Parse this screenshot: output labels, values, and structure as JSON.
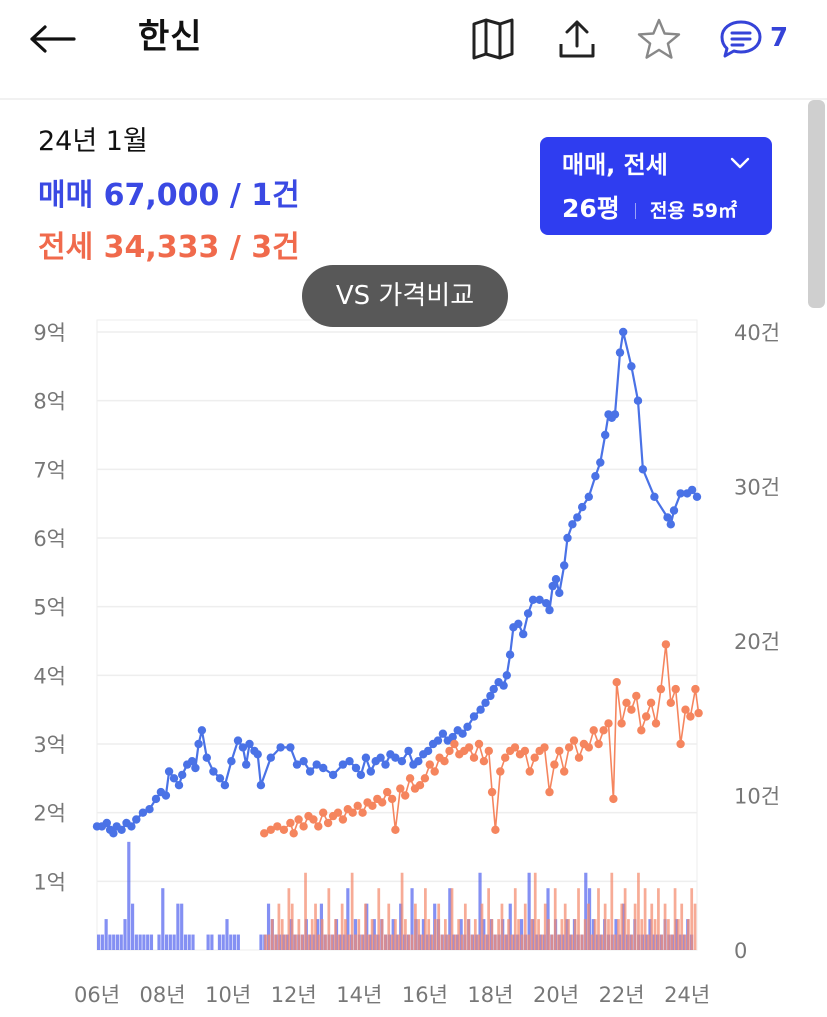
{
  "header": {
    "title": "한신",
    "comment_count": "7",
    "icons": [
      "back-arrow-icon",
      "map-icon",
      "share-icon",
      "star-icon",
      "comment-icon"
    ]
  },
  "summary": {
    "date": "24년 1월",
    "sale": "매매 67,000 / 1건",
    "jeonse": "전세 34,333 / 3건"
  },
  "type_selector": {
    "type": "매매, 전세",
    "size": "26평",
    "area": "전용 59㎡"
  },
  "compare_button": {
    "label": "VS 가격비교"
  },
  "colors": {
    "sale": "#4a72e6",
    "jeonse": "#f5855e",
    "accent": "#2f3df0",
    "sale_text": "#3a49e3",
    "jeonse_text": "#f06a4c"
  },
  "chart_data": {
    "type": "line",
    "x_ticks": [
      "06년",
      "08년",
      "10년",
      "12년",
      "14년",
      "16년",
      "18년",
      "20년",
      "22년",
      "24년"
    ],
    "xlim": [
      2006,
      2024.3
    ],
    "y_ticks": [
      "1억",
      "2억",
      "3억",
      "4억",
      "5억",
      "6억",
      "7억",
      "8억",
      "9억"
    ],
    "ylim": [
      0,
      9
    ],
    "y2_ticks": [
      "0",
      "10건",
      "20건",
      "30건",
      "40건"
    ],
    "y2lim": [
      0,
      40
    ],
    "grid": true,
    "series": [
      {
        "key": "sale",
        "points": [
          [
            2006.0,
            1.8
          ],
          [
            2006.15,
            1.8
          ],
          [
            2006.3,
            1.85
          ],
          [
            2006.4,
            1.75
          ],
          [
            2006.5,
            1.7
          ],
          [
            2006.6,
            1.8
          ],
          [
            2006.75,
            1.75
          ],
          [
            2006.9,
            1.85
          ],
          [
            2007.05,
            1.8
          ],
          [
            2007.2,
            1.9
          ],
          [
            2007.4,
            2.0
          ],
          [
            2007.6,
            2.05
          ],
          [
            2007.8,
            2.2
          ],
          [
            2007.95,
            2.3
          ],
          [
            2008.1,
            2.25
          ],
          [
            2008.2,
            2.6
          ],
          [
            2008.35,
            2.5
          ],
          [
            2008.5,
            2.4
          ],
          [
            2008.6,
            2.55
          ],
          [
            2008.75,
            2.7
          ],
          [
            2008.9,
            2.75
          ],
          [
            2009.0,
            2.65
          ],
          [
            2009.1,
            3.0
          ],
          [
            2009.2,
            3.2
          ],
          [
            2009.35,
            2.8
          ],
          [
            2009.55,
            2.6
          ],
          [
            2009.75,
            2.5
          ],
          [
            2009.9,
            2.4
          ],
          [
            2010.1,
            2.75
          ],
          [
            2010.3,
            3.05
          ],
          [
            2010.45,
            2.95
          ],
          [
            2010.55,
            2.7
          ],
          [
            2010.65,
            3.0
          ],
          [
            2010.8,
            2.9
          ],
          [
            2010.9,
            2.85
          ],
          [
            2011.0,
            2.4
          ],
          [
            2011.3,
            2.8
          ],
          [
            2011.6,
            2.95
          ],
          [
            2011.9,
            2.95
          ],
          [
            2012.1,
            2.7
          ],
          [
            2012.3,
            2.75
          ],
          [
            2012.5,
            2.6
          ],
          [
            2012.7,
            2.7
          ],
          [
            2012.9,
            2.65
          ],
          [
            2013.2,
            2.55
          ],
          [
            2013.5,
            2.7
          ],
          [
            2013.7,
            2.75
          ],
          [
            2013.9,
            2.65
          ],
          [
            2014.05,
            2.55
          ],
          [
            2014.2,
            2.8
          ],
          [
            2014.35,
            2.6
          ],
          [
            2014.5,
            2.75
          ],
          [
            2014.65,
            2.8
          ],
          [
            2014.8,
            2.7
          ],
          [
            2014.95,
            2.85
          ],
          [
            2015.1,
            2.8
          ],
          [
            2015.3,
            2.75
          ],
          [
            2015.5,
            2.9
          ],
          [
            2015.65,
            2.7
          ],
          [
            2015.8,
            2.75
          ],
          [
            2015.95,
            2.85
          ],
          [
            2016.1,
            2.9
          ],
          [
            2016.25,
            3.0
          ],
          [
            2016.4,
            3.05
          ],
          [
            2016.55,
            3.15
          ],
          [
            2016.7,
            3.05
          ],
          [
            2016.85,
            3.1
          ],
          [
            2017.0,
            3.2
          ],
          [
            2017.15,
            3.15
          ],
          [
            2017.3,
            3.25
          ],
          [
            2017.5,
            3.4
          ],
          [
            2017.7,
            3.5
          ],
          [
            2017.85,
            3.6
          ],
          [
            2018.0,
            3.7
          ],
          [
            2018.1,
            3.8
          ],
          [
            2018.25,
            3.9
          ],
          [
            2018.4,
            3.85
          ],
          [
            2018.5,
            4.0
          ],
          [
            2018.6,
            4.3
          ],
          [
            2018.7,
            4.7
          ],
          [
            2018.85,
            4.75
          ],
          [
            2019.0,
            4.6
          ],
          [
            2019.15,
            4.9
          ],
          [
            2019.3,
            5.1
          ],
          [
            2019.5,
            5.1
          ],
          [
            2019.7,
            5.05
          ],
          [
            2019.8,
            4.95
          ],
          [
            2019.9,
            5.3
          ],
          [
            2020.0,
            5.4
          ],
          [
            2020.1,
            5.2
          ],
          [
            2020.25,
            5.6
          ],
          [
            2020.35,
            6.0
          ],
          [
            2020.5,
            6.2
          ],
          [
            2020.65,
            6.3
          ],
          [
            2020.8,
            6.45
          ],
          [
            2021.0,
            6.6
          ],
          [
            2021.2,
            6.9
          ],
          [
            2021.35,
            7.1
          ],
          [
            2021.5,
            7.5
          ],
          [
            2021.6,
            7.8
          ],
          [
            2021.7,
            7.75
          ],
          [
            2021.8,
            7.8
          ],
          [
            2021.95,
            8.7
          ],
          [
            2022.05,
            9.0
          ],
          [
            2022.3,
            8.5
          ],
          [
            2022.5,
            8.0
          ],
          [
            2022.65,
            7.0
          ],
          [
            2023.0,
            6.6
          ],
          [
            2023.4,
            6.3
          ],
          [
            2023.5,
            6.2
          ],
          [
            2023.6,
            6.4
          ],
          [
            2023.8,
            6.65
          ],
          [
            2024.0,
            6.65
          ],
          [
            2024.15,
            6.7
          ],
          [
            2024.3,
            6.6
          ]
        ]
      },
      {
        "key": "jeonse",
        "points": [
          [
            2011.1,
            1.7
          ],
          [
            2011.3,
            1.75
          ],
          [
            2011.5,
            1.8
          ],
          [
            2011.7,
            1.75
          ],
          [
            2011.9,
            1.85
          ],
          [
            2012.0,
            1.7
          ],
          [
            2012.15,
            1.9
          ],
          [
            2012.3,
            1.8
          ],
          [
            2012.45,
            1.95
          ],
          [
            2012.6,
            1.9
          ],
          [
            2012.75,
            1.8
          ],
          [
            2012.9,
            2.0
          ],
          [
            2013.05,
            1.85
          ],
          [
            2013.2,
            1.95
          ],
          [
            2013.35,
            2.0
          ],
          [
            2013.5,
            1.9
          ],
          [
            2013.65,
            2.05
          ],
          [
            2013.8,
            2.0
          ],
          [
            2013.95,
            2.1
          ],
          [
            2014.1,
            2.0
          ],
          [
            2014.25,
            2.15
          ],
          [
            2014.4,
            2.1
          ],
          [
            2014.55,
            2.2
          ],
          [
            2014.7,
            2.15
          ],
          [
            2014.85,
            2.3
          ],
          [
            2015.0,
            2.2
          ],
          [
            2015.1,
            1.75
          ],
          [
            2015.25,
            2.35
          ],
          [
            2015.4,
            2.25
          ],
          [
            2015.55,
            2.5
          ],
          [
            2015.7,
            2.35
          ],
          [
            2015.85,
            2.4
          ],
          [
            2016.0,
            2.5
          ],
          [
            2016.15,
            2.7
          ],
          [
            2016.3,
            2.6
          ],
          [
            2016.45,
            2.8
          ],
          [
            2016.6,
            2.75
          ],
          [
            2016.75,
            2.9
          ],
          [
            2016.9,
            3.0
          ],
          [
            2017.05,
            2.85
          ],
          [
            2017.2,
            2.9
          ],
          [
            2017.35,
            2.95
          ],
          [
            2017.5,
            2.8
          ],
          [
            2017.65,
            3.0
          ],
          [
            2017.8,
            2.75
          ],
          [
            2017.95,
            2.9
          ],
          [
            2018.05,
            2.3
          ],
          [
            2018.15,
            1.75
          ],
          [
            2018.3,
            2.6
          ],
          [
            2018.45,
            2.8
          ],
          [
            2018.6,
            2.9
          ],
          [
            2018.75,
            2.95
          ],
          [
            2018.9,
            2.85
          ],
          [
            2019.05,
            2.9
          ],
          [
            2019.2,
            2.6
          ],
          [
            2019.35,
            2.8
          ],
          [
            2019.5,
            2.9
          ],
          [
            2019.65,
            2.95
          ],
          [
            2019.8,
            2.3
          ],
          [
            2019.95,
            2.7
          ],
          [
            2020.1,
            2.9
          ],
          [
            2020.25,
            2.6
          ],
          [
            2020.4,
            2.95
          ],
          [
            2020.55,
            3.05
          ],
          [
            2020.7,
            2.8
          ],
          [
            2020.85,
            3.0
          ],
          [
            2021.0,
            2.95
          ],
          [
            2021.15,
            3.2
          ],
          [
            2021.3,
            3.0
          ],
          [
            2021.45,
            3.2
          ],
          [
            2021.6,
            3.3
          ],
          [
            2021.75,
            2.2
          ],
          [
            2021.85,
            3.9
          ],
          [
            2022.0,
            3.3
          ],
          [
            2022.15,
            3.6
          ],
          [
            2022.3,
            3.5
          ],
          [
            2022.45,
            3.7
          ],
          [
            2022.6,
            3.2
          ],
          [
            2022.75,
            3.4
          ],
          [
            2022.9,
            3.6
          ],
          [
            2023.05,
            3.3
          ],
          [
            2023.2,
            3.8
          ],
          [
            2023.35,
            4.45
          ],
          [
            2023.5,
            3.6
          ],
          [
            2023.65,
            3.8
          ],
          [
            2023.8,
            3.0
          ],
          [
            2023.95,
            3.5
          ],
          [
            2024.1,
            3.4
          ],
          [
            2024.25,
            3.8
          ],
          [
            2024.35,
            3.45
          ]
        ]
      }
    ],
    "volume_series": [
      {
        "key": "sale",
        "values": [
          1,
          1,
          2,
          1,
          1,
          1,
          1,
          2,
          7,
          3,
          1,
          1,
          1,
          1,
          1,
          0,
          1,
          4,
          1,
          1,
          1,
          3,
          3,
          1,
          1,
          1,
          0,
          0,
          0,
          1,
          1,
          0,
          1,
          1,
          2,
          1,
          1,
          1,
          0,
          0,
          0,
          0,
          0,
          1,
          1,
          3,
          2,
          1,
          1,
          1,
          1,
          2,
          1,
          1,
          1,
          2,
          1,
          1,
          2,
          3,
          1,
          1,
          1,
          2,
          1,
          1,
          4,
          1,
          2,
          1,
          1,
          3,
          1,
          2,
          1,
          2,
          1,
          1,
          2,
          1,
          3,
          1,
          1,
          4,
          2,
          1,
          2,
          1,
          1,
          3,
          2,
          1,
          1,
          4,
          1,
          1,
          2,
          1,
          2,
          1,
          1,
          5,
          2,
          1,
          2,
          1,
          1,
          2,
          1,
          3,
          1,
          1,
          2,
          1,
          5,
          2,
          1,
          1,
          1,
          4,
          1,
          2,
          1,
          1,
          2,
          1,
          2,
          1,
          1,
          5,
          4,
          2,
          1,
          1,
          2,
          1,
          1,
          2,
          1,
          3,
          1,
          1,
          2,
          1,
          1,
          1,
          2,
          1,
          1,
          1,
          2,
          1,
          1,
          2,
          1,
          1,
          2,
          1
        ]
      },
      {
        "key": "jeonse",
        "values": [
          1,
          1,
          2,
          1,
          3,
          2,
          1,
          4,
          3,
          1,
          2,
          1,
          5,
          1,
          2,
          3,
          1,
          2,
          1,
          4,
          1,
          2,
          1,
          3,
          2,
          1,
          5,
          1,
          2,
          1,
          3,
          1,
          2,
          1,
          4,
          2,
          1,
          3,
          1,
          2,
          1,
          5,
          2,
          1,
          1,
          3,
          2,
          1,
          4,
          2,
          1,
          2,
          3,
          1,
          2,
          1,
          4,
          1,
          2,
          1,
          3,
          2,
          1,
          2,
          1,
          3,
          1,
          4,
          2,
          1,
          2,
          3,
          1,
          2,
          1,
          4,
          2,
          1,
          3,
          1,
          2,
          5,
          2,
          1,
          3,
          2,
          1,
          4,
          1,
          2,
          3,
          2,
          1,
          2,
          4,
          1,
          2,
          3,
          1,
          2,
          4,
          1,
          3,
          2,
          5,
          1,
          2,
          3,
          4,
          2,
          1,
          3,
          5,
          2,
          4,
          1,
          3,
          2,
          4,
          1,
          3,
          2,
          1,
          4,
          2,
          3,
          1,
          2,
          4,
          3
        ]
      }
    ]
  }
}
